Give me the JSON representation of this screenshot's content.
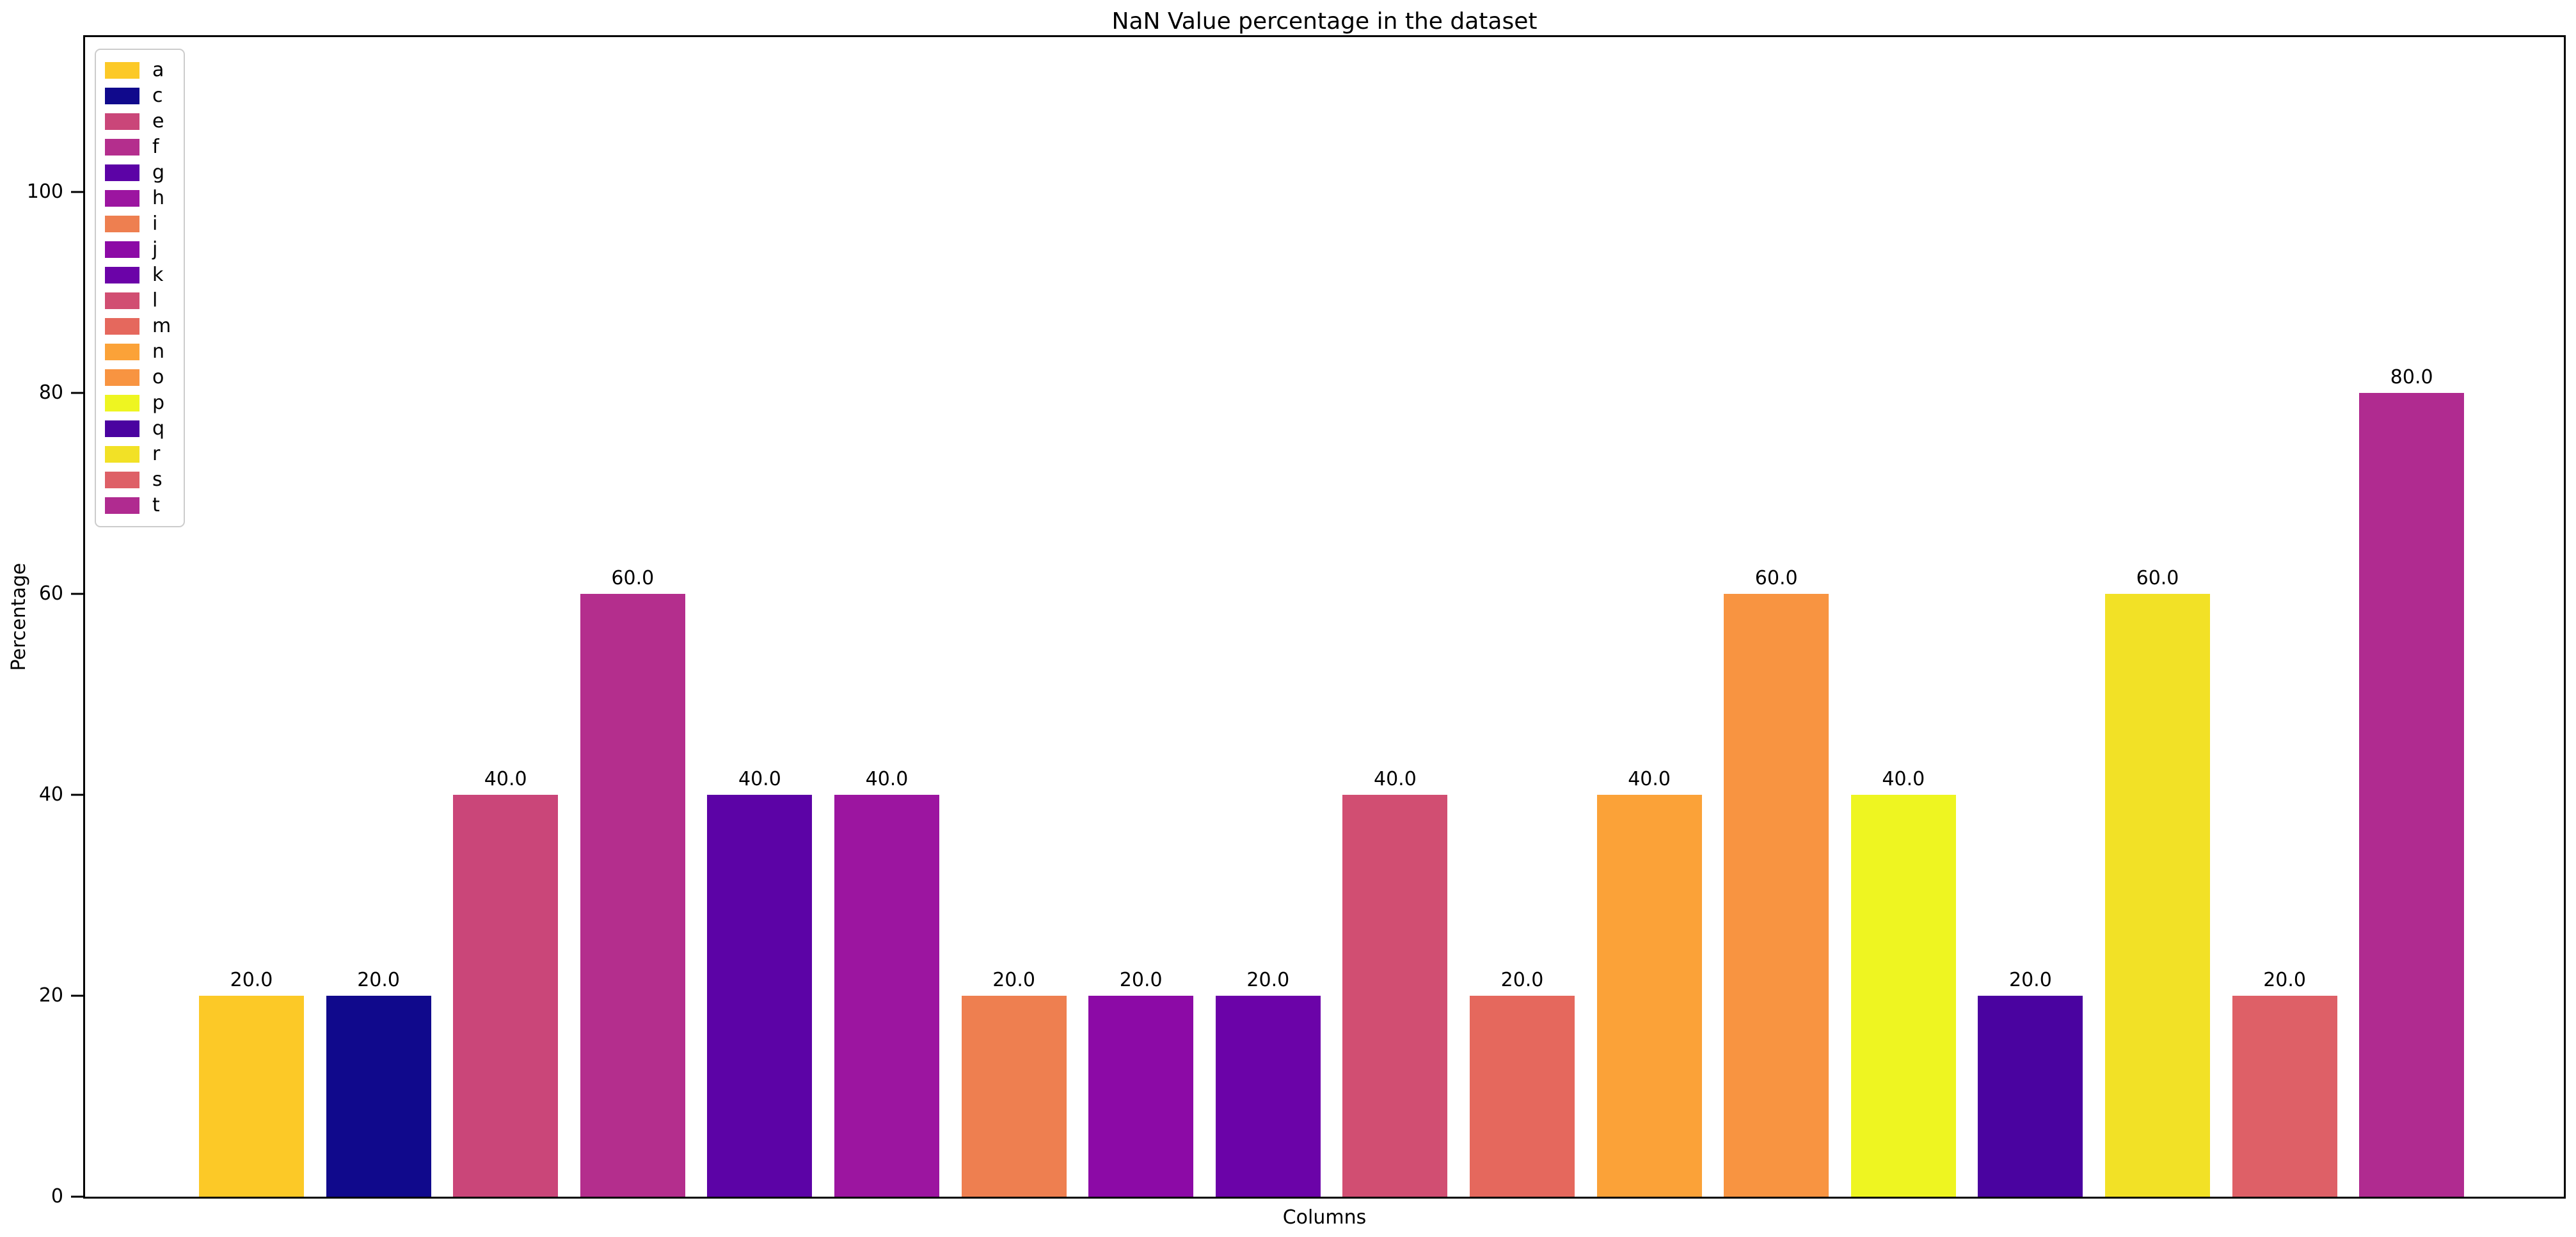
{
  "chart_data": {
    "type": "bar",
    "title": "NaN Value percentage in the dataset",
    "xlabel": "Columns",
    "ylabel": "Percentage",
    "categories": [
      "a",
      "c",
      "e",
      "f",
      "g",
      "h",
      "i",
      "j",
      "k",
      "l",
      "m",
      "n",
      "o",
      "p",
      "q",
      "r",
      "s",
      "t"
    ],
    "values": [
      20,
      20,
      40,
      60,
      40,
      40,
      20,
      20,
      20,
      40,
      20,
      40,
      60,
      40,
      20,
      60,
      20,
      80
    ],
    "bar_labels": [
      "20.0",
      "20.0",
      "40.0",
      "60.0",
      "40.0",
      "40.0",
      "20.0",
      "20.0",
      "20.0",
      "40.0",
      "20.0",
      "40.0",
      "60.0",
      "40.0",
      "20.0",
      "60.0",
      "20.0",
      "80.0"
    ],
    "bar_colors": [
      "#fcc927",
      "#10098c",
      "#ca4679",
      "#b42e8d",
      "#5c03a6",
      "#9c15a0",
      "#ee7f50",
      "#8c0aa6",
      "#6b03a8",
      "#d14e72",
      "#e5685d",
      "#fba238",
      "#f89441",
      "#eef521",
      "#4a03a0",
      "#f2e126",
      "#de6067",
      "#b02b90"
    ],
    "yticks": [
      0,
      20,
      40,
      60,
      80,
      100
    ],
    "ylim": [
      0,
      115.4
    ],
    "grid": false,
    "legend_position": "upper left",
    "axis_color": "#000000",
    "legend_border_color": "#cccccc",
    "text_color": "#000000"
  }
}
